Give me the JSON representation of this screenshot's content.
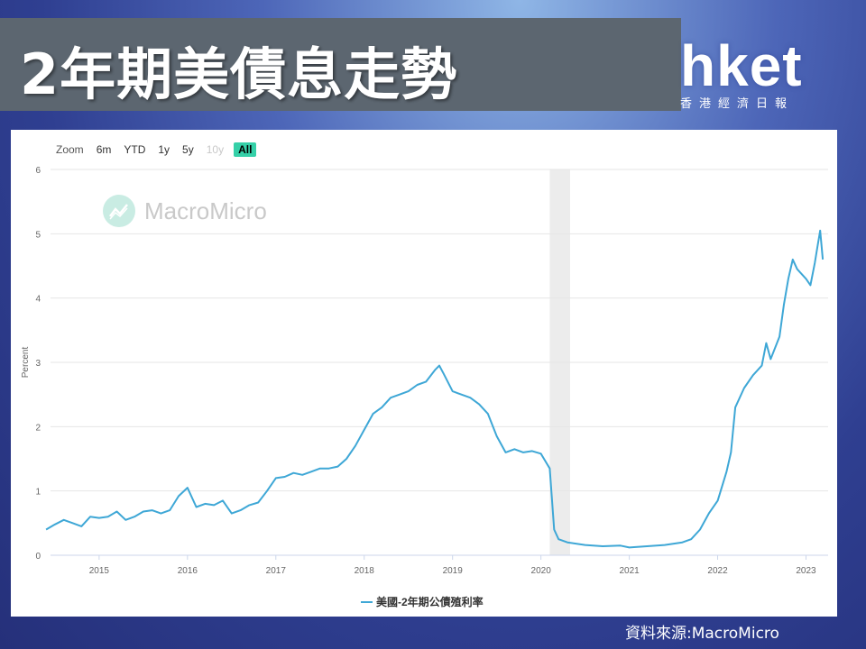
{
  "header": {
    "title": "2年期美債息走勢"
  },
  "logo": {
    "word": "hket",
    "subtitle": "香港經濟日報"
  },
  "zoom": {
    "label": "Zoom",
    "buttons": [
      "6m",
      "YTD",
      "1y",
      "5y",
      "10y",
      "All"
    ],
    "disabled": "10y",
    "active": "All"
  },
  "watermark": "MacroMicro",
  "source": "資料來源:MacroMicro",
  "colors": {
    "series": "#3ea7d6",
    "recession": "#ececec",
    "zoom_active": "#35d0a8"
  },
  "chart_data": {
    "type": "line",
    "title": "",
    "xlabel": "",
    "ylabel": "Percent",
    "ylim": [
      0,
      6
    ],
    "yticks": [
      0,
      1,
      2,
      3,
      4,
      5,
      6
    ],
    "xticks": [
      "2015",
      "2016",
      "2017",
      "2018",
      "2019",
      "2020",
      "2021",
      "2022",
      "2023"
    ],
    "xlim": [
      2014.45,
      2023.25
    ],
    "grid": true,
    "legend": "bottom-center",
    "recession_band": [
      2020.1,
      2020.33
    ],
    "series": [
      {
        "name": "美國-2年期公債殖利率",
        "x": [
          2014.4,
          2014.5,
          2014.6,
          2014.7,
          2014.8,
          2014.9,
          2015.0,
          2015.1,
          2015.2,
          2015.3,
          2015.4,
          2015.5,
          2015.6,
          2015.7,
          2015.8,
          2015.9,
          2016.0,
          2016.1,
          2016.2,
          2016.3,
          2016.4,
          2016.5,
          2016.6,
          2016.7,
          2016.8,
          2016.9,
          2017.0,
          2017.1,
          2017.2,
          2017.3,
          2017.4,
          2017.5,
          2017.6,
          2017.7,
          2017.8,
          2017.9,
          2018.0,
          2018.1,
          2018.2,
          2018.3,
          2018.4,
          2018.5,
          2018.6,
          2018.7,
          2018.8,
          2018.85,
          2018.9,
          2019.0,
          2019.1,
          2019.2,
          2019.3,
          2019.4,
          2019.5,
          2019.6,
          2019.7,
          2019.8,
          2019.9,
          2020.0,
          2020.1,
          2020.15,
          2020.2,
          2020.3,
          2020.5,
          2020.7,
          2020.9,
          2021.0,
          2021.2,
          2021.4,
          2021.6,
          2021.7,
          2021.8,
          2021.9,
          2022.0,
          2022.1,
          2022.15,
          2022.2,
          2022.3,
          2022.4,
          2022.5,
          2022.55,
          2022.6,
          2022.7,
          2022.75,
          2022.8,
          2022.85,
          2022.9,
          2023.0,
          2023.05,
          2023.1,
          2023.13,
          2023.16,
          2023.19
        ],
        "y": [
          0.4,
          0.48,
          0.55,
          0.5,
          0.45,
          0.6,
          0.58,
          0.6,
          0.68,
          0.55,
          0.6,
          0.68,
          0.7,
          0.65,
          0.7,
          0.92,
          1.05,
          0.75,
          0.8,
          0.78,
          0.85,
          0.65,
          0.7,
          0.78,
          0.82,
          1.0,
          1.2,
          1.22,
          1.28,
          1.25,
          1.3,
          1.35,
          1.35,
          1.38,
          1.5,
          1.7,
          1.95,
          2.2,
          2.3,
          2.45,
          2.5,
          2.55,
          2.65,
          2.7,
          2.88,
          2.95,
          2.82,
          2.55,
          2.5,
          2.45,
          2.35,
          2.2,
          1.85,
          1.6,
          1.65,
          1.6,
          1.62,
          1.58,
          1.35,
          0.4,
          0.25,
          0.2,
          0.16,
          0.14,
          0.15,
          0.12,
          0.14,
          0.16,
          0.2,
          0.25,
          0.4,
          0.65,
          0.85,
          1.3,
          1.6,
          2.3,
          2.6,
          2.8,
          2.95,
          3.3,
          3.05,
          3.4,
          3.9,
          4.3,
          4.6,
          4.45,
          4.3,
          4.2,
          4.55,
          4.8,
          5.05,
          4.6
        ]
      }
    ]
  }
}
